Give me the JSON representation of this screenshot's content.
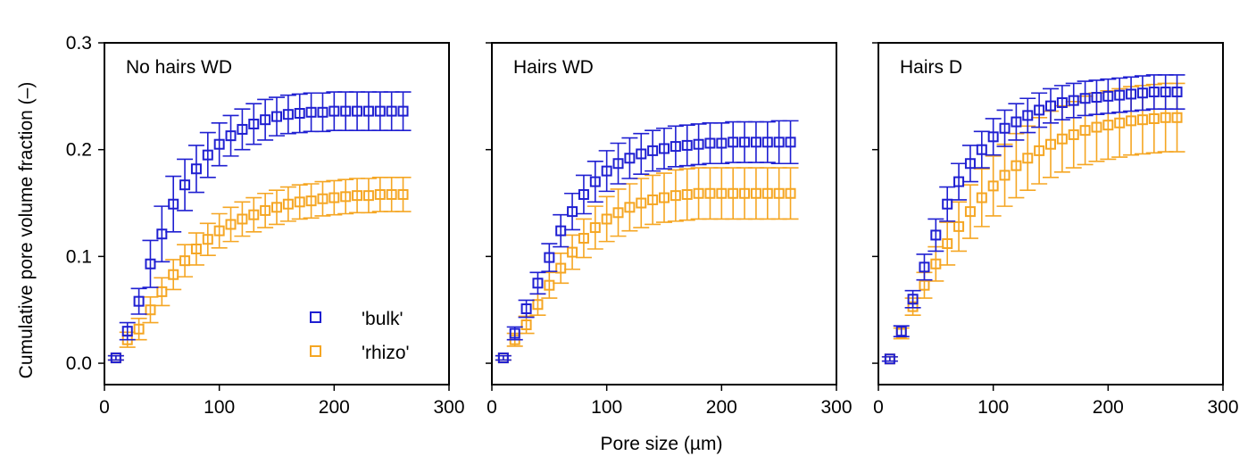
{
  "figure": {
    "ylabel": "Cumulative pore volume fraction (–)",
    "xlabel": "Pore size (µm)"
  },
  "chart_data": [
    {
      "type": "scatter",
      "title": "No hairs WD",
      "xlim": [
        0,
        300
      ],
      "ylim": [
        -0.02,
        0.3
      ],
      "xticks": [
        0,
        100,
        200,
        300
      ],
      "yticks": [
        0.0,
        0.1,
        0.2,
        0.3
      ],
      "legend": {
        "position": "bottom-right",
        "entries": [
          "'bulk'",
          "'rhizo'"
        ]
      },
      "x": [
        10,
        20,
        30,
        40,
        50,
        60,
        70,
        80,
        90,
        100,
        110,
        120,
        130,
        140,
        150,
        160,
        170,
        180,
        190,
        200,
        210,
        220,
        230,
        240,
        250,
        260
      ],
      "series": [
        {
          "name": "'bulk'",
          "color": "#1f1fd1",
          "values": [
            0.005,
            0.03,
            0.058,
            0.093,
            0.121,
            0.149,
            0.167,
            0.182,
            0.195,
            0.205,
            0.213,
            0.219,
            0.224,
            0.228,
            0.231,
            0.233,
            0.234,
            0.235,
            0.235,
            0.236,
            0.236,
            0.236,
            0.236,
            0.236,
            0.236,
            0.236
          ],
          "errors": [
            0.002,
            0.008,
            0.012,
            0.022,
            0.026,
            0.026,
            0.024,
            0.022,
            0.021,
            0.02,
            0.019,
            0.019,
            0.019,
            0.019,
            0.018,
            0.018,
            0.018,
            0.018,
            0.018,
            0.018,
            0.018,
            0.018,
            0.018,
            0.018,
            0.018,
            0.018
          ]
        },
        {
          "name": "'rhizo'",
          "color": "#f5a623",
          "values": [
            0.005,
            0.022,
            0.032,
            0.05,
            0.067,
            0.083,
            0.096,
            0.107,
            0.116,
            0.124,
            0.13,
            0.135,
            0.139,
            0.143,
            0.146,
            0.149,
            0.151,
            0.152,
            0.154,
            0.155,
            0.156,
            0.157,
            0.157,
            0.158,
            0.158,
            0.158
          ],
          "errors": [
            0.002,
            0.007,
            0.01,
            0.012,
            0.013,
            0.014,
            0.015,
            0.015,
            0.015,
            0.016,
            0.016,
            0.016,
            0.016,
            0.016,
            0.016,
            0.016,
            0.016,
            0.016,
            0.016,
            0.016,
            0.016,
            0.016,
            0.016,
            0.016,
            0.016,
            0.016
          ]
        }
      ]
    },
    {
      "type": "scatter",
      "title": "Hairs WD",
      "xlim": [
        0,
        300
      ],
      "ylim": [
        -0.02,
        0.3
      ],
      "xticks": [
        0,
        100,
        200,
        300
      ],
      "yticks": [
        0.0,
        0.1,
        0.2,
        0.3
      ],
      "x": [
        10,
        20,
        30,
        40,
        50,
        60,
        70,
        80,
        90,
        100,
        110,
        120,
        130,
        140,
        150,
        160,
        170,
        180,
        190,
        200,
        210,
        220,
        230,
        240,
        250,
        260
      ],
      "series": [
        {
          "name": "'bulk'",
          "color": "#1f1fd1",
          "values": [
            0.005,
            0.028,
            0.051,
            0.075,
            0.099,
            0.124,
            0.142,
            0.158,
            0.17,
            0.18,
            0.187,
            0.192,
            0.196,
            0.199,
            0.201,
            0.203,
            0.204,
            0.205,
            0.206,
            0.206,
            0.207,
            0.207,
            0.207,
            0.207,
            0.207,
            0.207
          ],
          "errors": [
            0.002,
            0.006,
            0.008,
            0.01,
            0.013,
            0.015,
            0.017,
            0.018,
            0.019,
            0.019,
            0.019,
            0.019,
            0.019,
            0.019,
            0.019,
            0.019,
            0.019,
            0.019,
            0.019,
            0.019,
            0.019,
            0.019,
            0.019,
            0.019,
            0.02,
            0.02
          ]
        },
        {
          "name": "'rhizo'",
          "color": "#f5a623",
          "values": [
            0.005,
            0.022,
            0.036,
            0.055,
            0.073,
            0.089,
            0.104,
            0.117,
            0.127,
            0.135,
            0.141,
            0.146,
            0.15,
            0.153,
            0.155,
            0.157,
            0.158,
            0.159,
            0.159,
            0.159,
            0.159,
            0.159,
            0.159,
            0.159,
            0.159,
            0.159
          ],
          "errors": [
            0.002,
            0.006,
            0.008,
            0.01,
            0.012,
            0.014,
            0.016,
            0.018,
            0.02,
            0.021,
            0.022,
            0.022,
            0.023,
            0.023,
            0.023,
            0.024,
            0.024,
            0.024,
            0.024,
            0.024,
            0.024,
            0.024,
            0.024,
            0.024,
            0.024,
            0.024
          ]
        }
      ]
    },
    {
      "type": "scatter",
      "title": "Hairs D",
      "xlim": [
        0,
        300
      ],
      "ylim": [
        -0.02,
        0.3
      ],
      "xticks": [
        0,
        100,
        200,
        300
      ],
      "yticks": [
        0.0,
        0.1,
        0.2,
        0.3
      ],
      "x": [
        10,
        20,
        30,
        40,
        50,
        60,
        70,
        80,
        90,
        100,
        110,
        120,
        130,
        140,
        150,
        160,
        170,
        180,
        190,
        200,
        210,
        220,
        230,
        240,
        250,
        260
      ],
      "series": [
        {
          "name": "'bulk'",
          "color": "#1f1fd1",
          "values": [
            0.004,
            0.03,
            0.06,
            0.09,
            0.12,
            0.149,
            0.17,
            0.187,
            0.2,
            0.212,
            0.22,
            0.226,
            0.232,
            0.237,
            0.241,
            0.244,
            0.246,
            0.248,
            0.249,
            0.25,
            0.251,
            0.252,
            0.253,
            0.254,
            0.254,
            0.254
          ],
          "errors": [
            0.002,
            0.005,
            0.008,
            0.012,
            0.015,
            0.016,
            0.017,
            0.017,
            0.017,
            0.017,
            0.017,
            0.017,
            0.016,
            0.016,
            0.016,
            0.016,
            0.016,
            0.016,
            0.016,
            0.016,
            0.016,
            0.016,
            0.016,
            0.016,
            0.016,
            0.016
          ]
        },
        {
          "name": "'rhizo'",
          "color": "#f5a623",
          "values": [
            0.004,
            0.028,
            0.053,
            0.073,
            0.093,
            0.112,
            0.128,
            0.142,
            0.155,
            0.166,
            0.176,
            0.185,
            0.192,
            0.199,
            0.205,
            0.21,
            0.214,
            0.218,
            0.221,
            0.223,
            0.225,
            0.227,
            0.228,
            0.229,
            0.23,
            0.23
          ],
          "errors": [
            0.002,
            0.005,
            0.008,
            0.012,
            0.016,
            0.02,
            0.023,
            0.025,
            0.027,
            0.028,
            0.029,
            0.03,
            0.03,
            0.031,
            0.031,
            0.031,
            0.031,
            0.032,
            0.032,
            0.032,
            0.032,
            0.032,
            0.032,
            0.032,
            0.032,
            0.032
          ]
        }
      ]
    }
  ]
}
